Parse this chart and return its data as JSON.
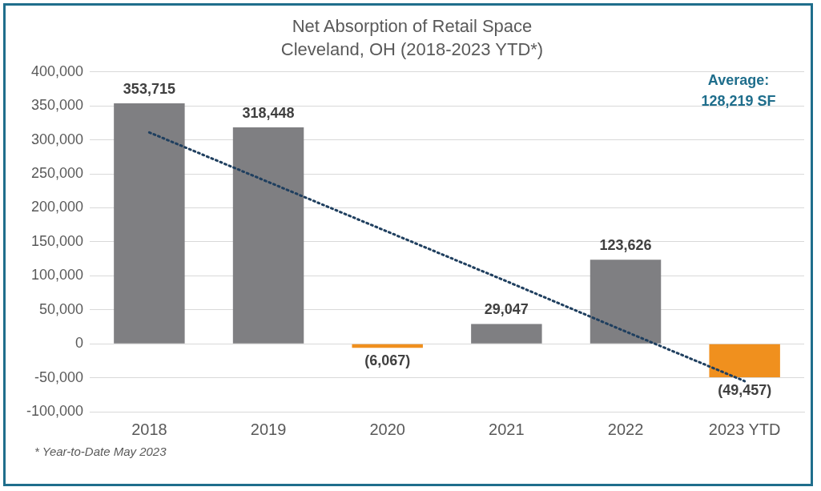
{
  "chart_data": {
    "type": "bar",
    "title": "Net Absorption of Retail Space",
    "subtitle": "Cleveland, OH (2018-2023 YTD*)",
    "categories": [
      "2018",
      "2019",
      "2020",
      "2021",
      "2022",
      "2023 YTD"
    ],
    "series": [
      {
        "colors": [
          "#7f7f82",
          "#7f7f82",
          "#f0901e",
          "#7f7f82",
          "#7f7f82",
          "#f0901e"
        ],
        "values": [
          353715,
          318448,
          -6067,
          29047,
          123626,
          -49457
        ],
        "value_labels": [
          "353,715",
          "318,448",
          "(6,067)",
          "29,047",
          "123,626",
          "(49,457)"
        ]
      },
      {
        "type": "line",
        "color": "#1f3f5f",
        "line_style": "dotted",
        "marker": "none",
        "values": [
          311000,
          238000,
          165000,
          92000,
          18000,
          -55000
        ]
      }
    ],
    "ylim": [
      -100000,
      400000
    ],
    "yticks": [
      {
        "value": -100000,
        "label": "-100,000"
      },
      {
        "value": -50000,
        "label": "-50,000"
      },
      0,
      {
        "value": 50000,
        "label": "50,000"
      },
      {
        "value": 100000,
        "label": "100,000"
      },
      {
        "value": 150000,
        "label": "150,000"
      },
      {
        "value": 200000,
        "label": "200,000"
      },
      {
        "value": 250000,
        "label": "250,000"
      },
      {
        "value": 300000,
        "label": "300,000"
      },
      {
        "value": 350000,
        "label": "350,000"
      },
      {
        "value": 400000,
        "label": "400,000"
      }
    ],
    "grid": "y",
    "legend": false,
    "annotations": [
      "Average:\n128,219 SF",
      "* Year-to-Date May 2023"
    ]
  }
}
